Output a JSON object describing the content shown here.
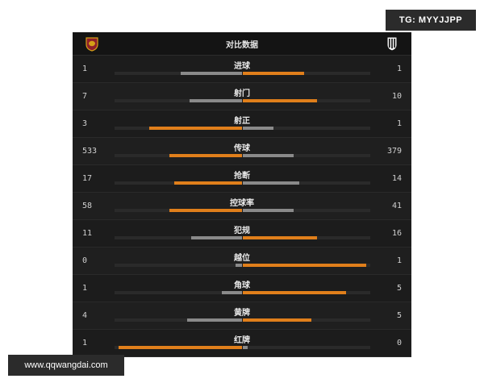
{
  "watermarks": {
    "top": "TG: MYYJJPP",
    "bottom": "www.qqwangdai.com"
  },
  "header": {
    "title": "对比数据",
    "left_team_icon": "as-roma-crest-icon",
    "right_team_icon": "juventus-crest-icon"
  },
  "colors": {
    "higher": "#e07f1b",
    "lower": "#8a8a8a"
  },
  "stats": [
    {
      "label": "进球",
      "left": "1",
      "right": "1",
      "left_fill": 0.48,
      "right_fill": 0.48,
      "left_color": "gray",
      "right_color": "orange"
    },
    {
      "label": "射门",
      "left": "7",
      "right": "10",
      "left_fill": 0.41,
      "right_fill": 0.58,
      "left_color": "gray",
      "right_color": "orange"
    },
    {
      "label": "射正",
      "left": "3",
      "right": "1",
      "left_fill": 0.73,
      "right_fill": 0.24,
      "left_color": "orange",
      "right_color": "gray"
    },
    {
      "label": "传球",
      "left": "533",
      "right": "379",
      "left_fill": 0.57,
      "right_fill": 0.4,
      "left_color": "orange",
      "right_color": "gray"
    },
    {
      "label": "抢断",
      "left": "17",
      "right": "14",
      "left_fill": 0.53,
      "right_fill": 0.44,
      "left_color": "orange",
      "right_color": "gray"
    },
    {
      "label": "控球率",
      "left": "58",
      "right": "41",
      "left_fill": 0.57,
      "right_fill": 0.4,
      "left_color": "orange",
      "right_color": "gray"
    },
    {
      "label": "犯规",
      "left": "11",
      "right": "16",
      "left_fill": 0.4,
      "right_fill": 0.58,
      "left_color": "gray",
      "right_color": "orange"
    },
    {
      "label": "越位",
      "left": "0",
      "right": "1",
      "left_fill": 0.05,
      "right_fill": 0.97,
      "left_color": "gray",
      "right_color": "orange"
    },
    {
      "label": "角球",
      "left": "1",
      "right": "5",
      "left_fill": 0.16,
      "right_fill": 0.81,
      "left_color": "gray",
      "right_color": "orange"
    },
    {
      "label": "黄牌",
      "left": "4",
      "right": "5",
      "left_fill": 0.43,
      "right_fill": 0.54,
      "left_color": "gray",
      "right_color": "orange"
    },
    {
      "label": "红牌",
      "left": "1",
      "right": "0",
      "left_fill": 0.97,
      "right_fill": 0.04,
      "left_color": "orange",
      "right_color": "gray"
    }
  ]
}
